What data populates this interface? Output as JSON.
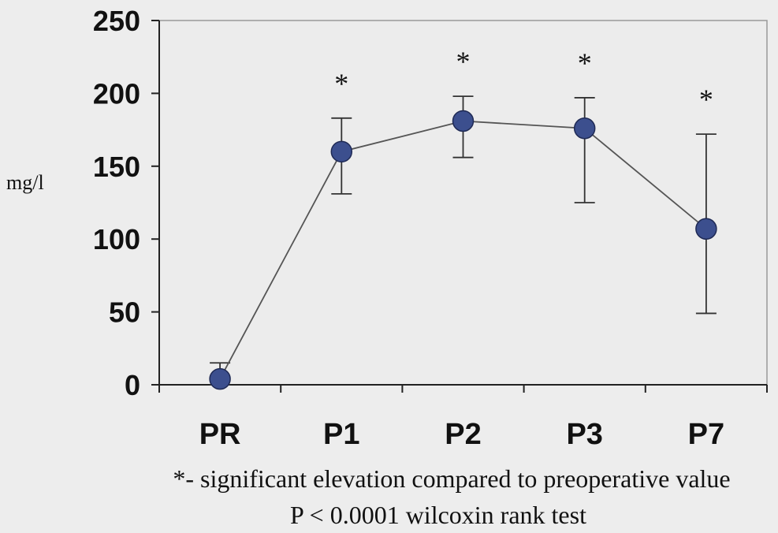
{
  "chart_data": {
    "type": "line",
    "categories": [
      "PR",
      "P1",
      "P2",
      "P3",
      "P7"
    ],
    "series": [
      {
        "values": [
          4,
          160,
          181,
          176,
          107
        ],
        "error_low": [
          0,
          131,
          156,
          125,
          49
        ],
        "error_high": [
          15,
          183,
          198,
          197,
          172
        ]
      }
    ],
    "significance_markers": [
      "",
      "*",
      "*",
      "*",
      "*"
    ],
    "ylabel": "mg/l",
    "ylim": [
      0,
      250
    ],
    "yticks": [
      "0",
      "50",
      "100",
      "150",
      "200",
      "250"
    ],
    "grid": false,
    "marker_color": "#3c4f8e",
    "line_color": "#555555",
    "footnote_line1": "*- significant elevation compared to preoperative value",
    "footnote_line2": "P < 0.0001 wilcoxin rank test"
  }
}
